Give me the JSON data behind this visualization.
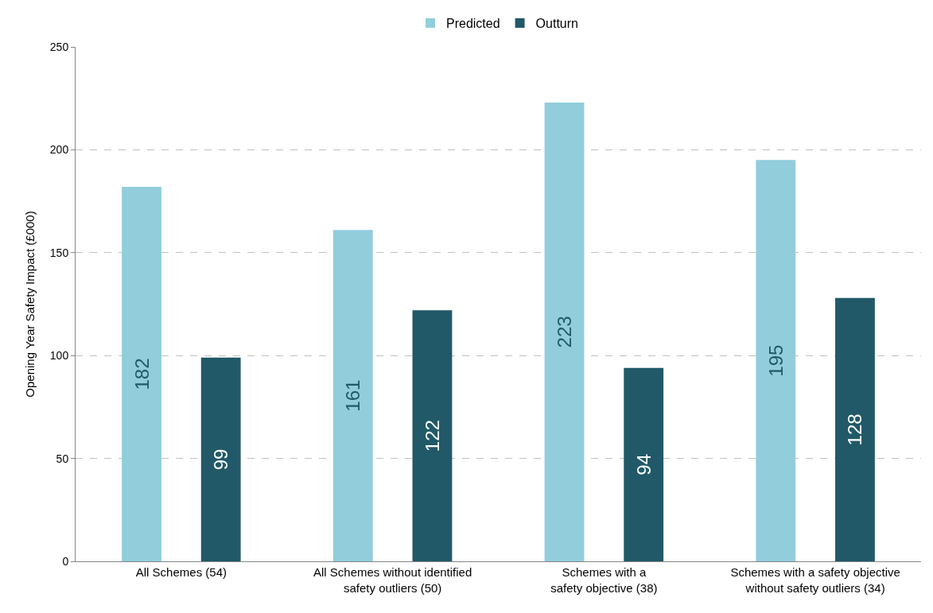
{
  "chart_data": {
    "type": "bar",
    "ylabel": "Opening Year Safety Impact (£000)",
    "categories": [
      "All Schemes (54)",
      "All Schemes without identified\nsafety outliers (50)",
      "Schemes with a\nsafety objective (38)",
      "Schemes with a safety objective\nwithout safety outliers (34)"
    ],
    "series": [
      {
        "name": "Predicted",
        "color": "#92cddc",
        "values": [
          182,
          161,
          223,
          195
        ]
      },
      {
        "name": "Outturn",
        "color": "#215968",
        "values": [
          99,
          122,
          94,
          128
        ]
      }
    ],
    "ylim": [
      0,
      250
    ],
    "yticks": [
      0,
      50,
      100,
      150,
      200,
      250
    ],
    "grid": "y",
    "legend": "top",
    "data_labels": true
  }
}
